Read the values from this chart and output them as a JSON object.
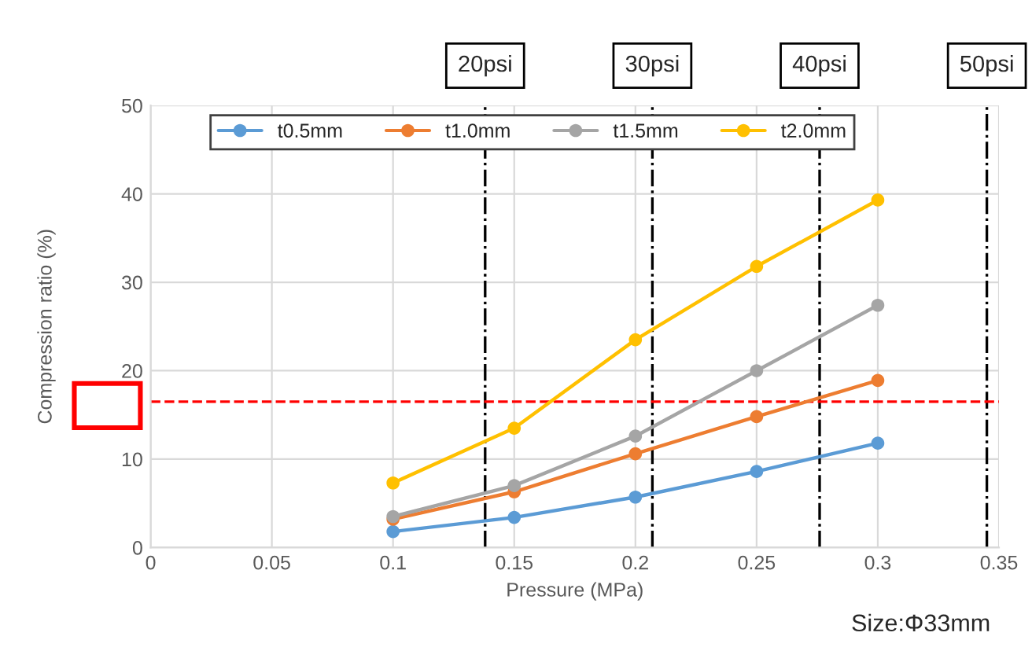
{
  "chart_data": {
    "type": "line",
    "xlabel": "Pressure (MPa)",
    "ylabel": "Compression ratio (%)",
    "x": [
      0.1,
      0.15,
      0.2,
      0.25,
      0.3
    ],
    "series": [
      {
        "name": "t0.5mm",
        "color": "#5b9bd5",
        "values": [
          1.8,
          3.4,
          5.7,
          8.6,
          11.8
        ]
      },
      {
        "name": "t1.0mm",
        "color": "#ed7d31",
        "values": [
          3.2,
          6.3,
          10.6,
          14.8,
          18.9
        ]
      },
      {
        "name": "t1.5mm",
        "color": "#a5a5a5",
        "values": [
          3.5,
          7.0,
          12.6,
          20.0,
          27.4
        ]
      },
      {
        "name": "t2.0mm",
        "color": "#ffc000",
        "values": [
          7.3,
          13.5,
          23.5,
          31.8,
          39.3
        ]
      }
    ],
    "xlim": [
      0,
      0.35
    ],
    "xticks": [
      0,
      0.05,
      0.1,
      0.15,
      0.2,
      0.25,
      0.3,
      0.35
    ],
    "ylim": [
      0,
      50
    ],
    "yticks": [
      0,
      10,
      20,
      30,
      40,
      50
    ],
    "ref_lines": [
      {
        "axis": "x",
        "value": 0.138,
        "label": "20psi",
        "color": "#000000",
        "line_style": "dashdot"
      },
      {
        "axis": "x",
        "value": 0.207,
        "label": "30psi",
        "color": "#000000",
        "line_style": "dashdot"
      },
      {
        "axis": "x",
        "value": 0.276,
        "label": "40psi",
        "color": "#000000",
        "line_style": "dashdot"
      },
      {
        "axis": "x",
        "value": 0.345,
        "label": "50psi",
        "color": "#000000",
        "line_style": "dashdot"
      },
      {
        "axis": "y",
        "value": 16.5,
        "label": null,
        "color": "#ff0000",
        "line_style": "dashed"
      }
    ],
    "annotations": [
      "Size:Φ33mm"
    ],
    "grid": true,
    "legend": "top",
    "marker": "circle",
    "line_style": "solid"
  }
}
